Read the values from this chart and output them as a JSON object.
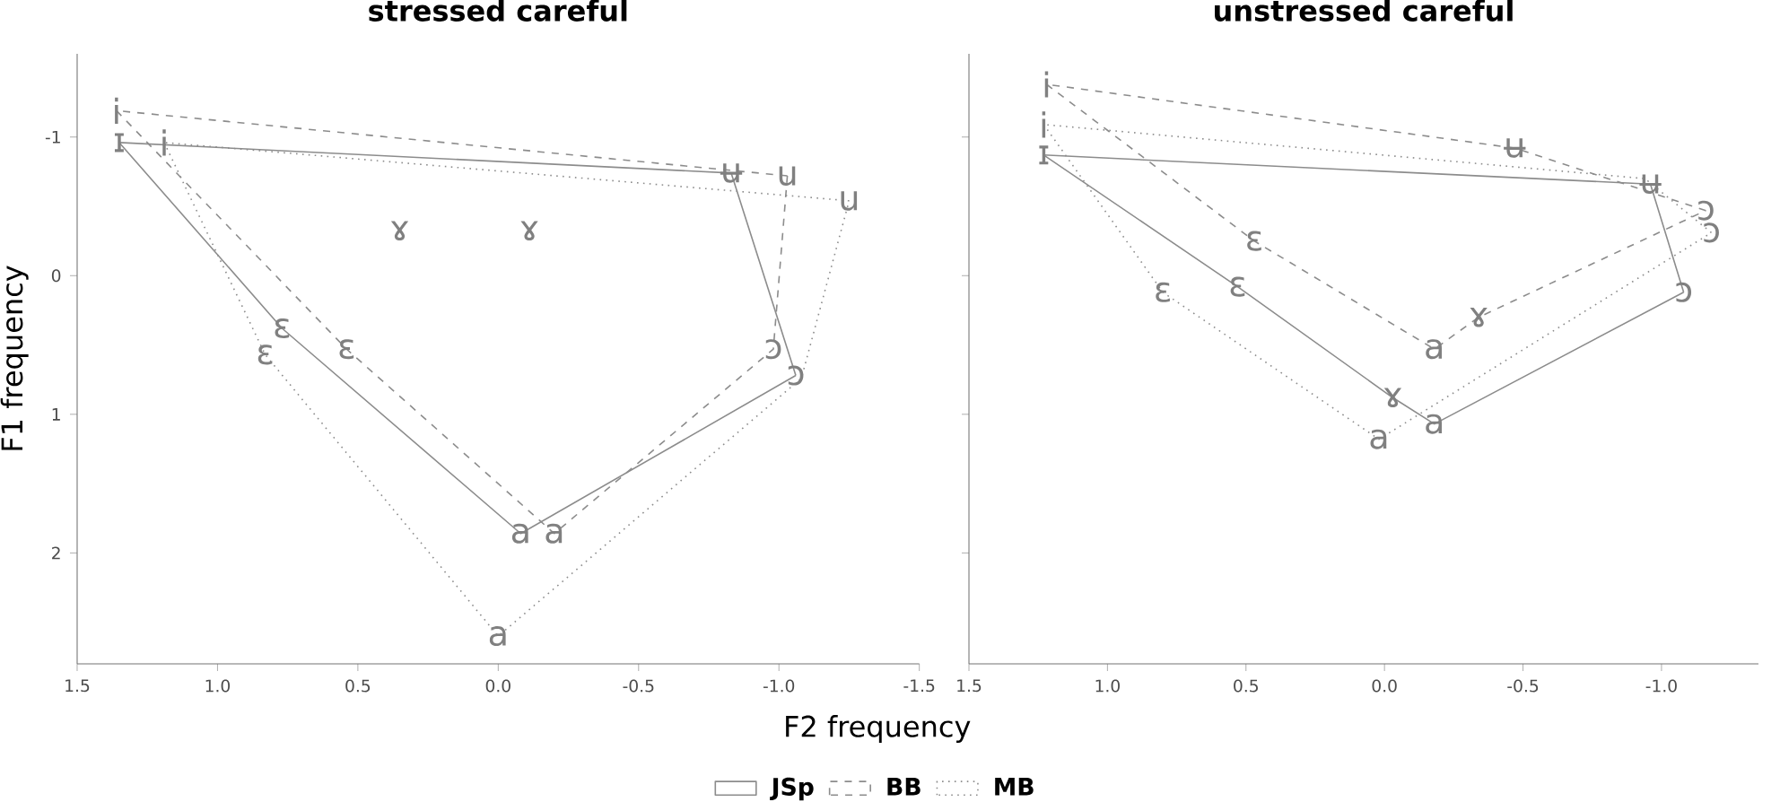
{
  "chart_data": [
    {
      "type": "line",
      "title": "stressed careful",
      "xlabel": "F2 frequency",
      "ylabel": "F1 frequency",
      "xlim": [
        1.5,
        -1.5
      ],
      "ylim": [
        2.8,
        -1.6
      ],
      "xticks": [
        1.5,
        {
          "value": 1,
          "label": "1.0"
        },
        0.5,
        {
          "value": 0,
          "label": "0.0"
        },
        -0.5,
        {
          "value": -1,
          "label": "-1.0"
        },
        -1.5
      ],
      "yticks": [
        -1,
        0,
        1,
        2
      ],
      "grid": false,
      "legend": "bottom",
      "marker": "none",
      "series": [
        {
          "name": "JSp",
          "color": "#8c8c8c",
          "line_style": "solid",
          "x": [
            1.35,
            0.77,
            -0.08,
            -1.06
          ],
          "values": [
            -0.96,
            0.38,
            1.86,
            0.72
          ]
        },
        {
          "color": "#8c8c8c",
          "line_style": "solid",
          "x": [
            -1.06,
            -0.83,
            1.35
          ],
          "values": [
            0.72,
            -0.74,
            -0.96
          ]
        },
        {
          "name": "BB",
          "color": "#8c8c8c",
          "line_style": "dashed",
          "x": [
            1.36,
            0.54,
            -0.2,
            -0.98,
            -1.03
          ],
          "values": [
            -1.19,
            0.53,
            1.86,
            0.53,
            -0.72
          ]
        },
        {
          "color": "#8c8c8c",
          "line_style": "dashed",
          "x": [
            -1.03,
            1.36
          ],
          "values": [
            -0.72,
            -1.19
          ]
        },
        {
          "name": "MB",
          "color": "#8c8c8c",
          "line_style": "dotted",
          "x": [
            1.19,
            0.83,
            0.0,
            -1.08,
            -1.25
          ],
          "values": [
            -0.96,
            0.57,
            2.6,
            0.74,
            -0.54
          ]
        },
        {
          "color": "#8c8c8c",
          "line_style": "dotted",
          "x": [
            -1.25,
            1.19
          ],
          "values": [
            -0.54,
            -0.96
          ]
        }
      ],
      "annotations": [
        {
          "text": "ɪ",
          "x": 1.35,
          "y": -0.96
        },
        {
          "text": "ɛ",
          "x": 0.77,
          "y": 0.38
        },
        {
          "text": "a",
          "x": -0.08,
          "y": 1.86
        },
        {
          "text": "ɔ",
          "x": -1.06,
          "y": 0.72
        },
        {
          "text": "ʉ",
          "x": -0.83,
          "y": -0.74
        },
        {
          "text": "i",
          "x": 1.36,
          "y": -1.19
        },
        {
          "text": "ɛ",
          "x": 0.54,
          "y": 0.53
        },
        {
          "text": "a",
          "x": -0.2,
          "y": 1.86
        },
        {
          "text": "ɔ",
          "x": -0.98,
          "y": 0.53
        },
        {
          "text": "u",
          "x": -1.03,
          "y": -0.72
        },
        {
          "text": "i",
          "x": 1.19,
          "y": -0.96
        },
        {
          "text": "ɛ",
          "x": 0.83,
          "y": 0.57
        },
        {
          "text": "a",
          "x": 0.0,
          "y": 2.6
        },
        {
          "text": "u",
          "x": -1.25,
          "y": -0.54
        },
        "ɤ",
        "ɤ"
      ]
    },
    {
      "type": "line",
      "title": "unstressed careful",
      "xlim": [
        1.5,
        -1.35
      ],
      "ylim": [
        2.8,
        -1.6
      ],
      "yticks": [
        -1,
        0,
        1,
        2
      ],
      "tick_labels": "x",
      "xticks": [
        1.5,
        {
          "value": 1,
          "label": "1.0"
        },
        0.5,
        {
          "value": 0,
          "label": "0.0"
        },
        -0.5,
        {
          "value": -1,
          "label": "-1.0"
        }
      ],
      "grid": false,
      "marker": "none",
      "series": [
        {
          "color": "#8c8c8c",
          "line_style": "solid",
          "x": [
            1.23,
            0.53,
            -0.03,
            -0.18,
            -1.08
          ],
          "values": [
            -0.87,
            0.08,
            0.88,
            1.07,
            0.12
          ]
        },
        {
          "color": "#8c8c8c",
          "line_style": "solid",
          "x": [
            -1.08,
            -0.96,
            1.23
          ],
          "values": [
            0.12,
            -0.66,
            -0.87
          ]
        },
        {
          "color": "#8c8c8c",
          "line_style": "dashed",
          "x": [
            1.22,
            0.47,
            -0.18,
            -0.34,
            -1.16
          ],
          "values": [
            -1.38,
            -0.25,
            0.53,
            0.3,
            -0.47
          ]
        },
        {
          "color": "#8c8c8c",
          "line_style": "dashed",
          "x": [
            -1.16,
            -0.47,
            1.22
          ],
          "values": [
            -0.47,
            -0.92,
            -1.38
          ]
        },
        {
          "color": "#8c8c8c",
          "line_style": "dotted",
          "x": [
            1.23,
            0.8,
            0.02,
            -1.18
          ],
          "values": [
            -1.09,
            0.12,
            1.18,
            -0.31
          ]
        },
        {
          "color": "#8c8c8c",
          "line_style": "dotted",
          "x": [
            -1.18,
            -0.94,
            1.23
          ],
          "values": [
            -0.31,
            -0.7,
            -1.09
          ]
        }
      ],
      "annotations": [
        {
          "text": "ɪ",
          "x": 1.23,
          "y": -0.87
        },
        {
          "text": "ɛ",
          "x": 0.53,
          "y": 0.08
        },
        {
          "text": "ɤ",
          "x": -0.03,
          "y": 0.88
        },
        {
          "text": "a",
          "x": -0.18,
          "y": 1.07
        },
        {
          "text": "ɔ",
          "x": -1.08,
          "y": 0.12
        },
        {
          "text": "ʉ",
          "x": -0.96,
          "y": -0.66
        },
        {
          "text": "i",
          "x": 1.22,
          "y": -1.38
        },
        {
          "text": "ɛ",
          "x": 0.47,
          "y": -0.25
        },
        {
          "text": "a",
          "x": -0.18,
          "y": 0.53
        },
        {
          "text": "ɤ",
          "x": -0.34,
          "y": 0.3
        },
        {
          "text": "ɔ",
          "x": -1.16,
          "y": -0.47
        },
        {
          "text": "ʉ",
          "x": -0.47,
          "y": -0.92
        },
        {
          "text": "i",
          "x": 1.23,
          "y": -1.09
        },
        {
          "text": "ɛ",
          "x": 0.8,
          "y": 0.12
        },
        {
          "text": "a",
          "x": 0.02,
          "y": 1.18
        },
        {
          "text": "ɔ",
          "x": -1.18,
          "y": -0.31
        }
      ]
    }
  ]
}
